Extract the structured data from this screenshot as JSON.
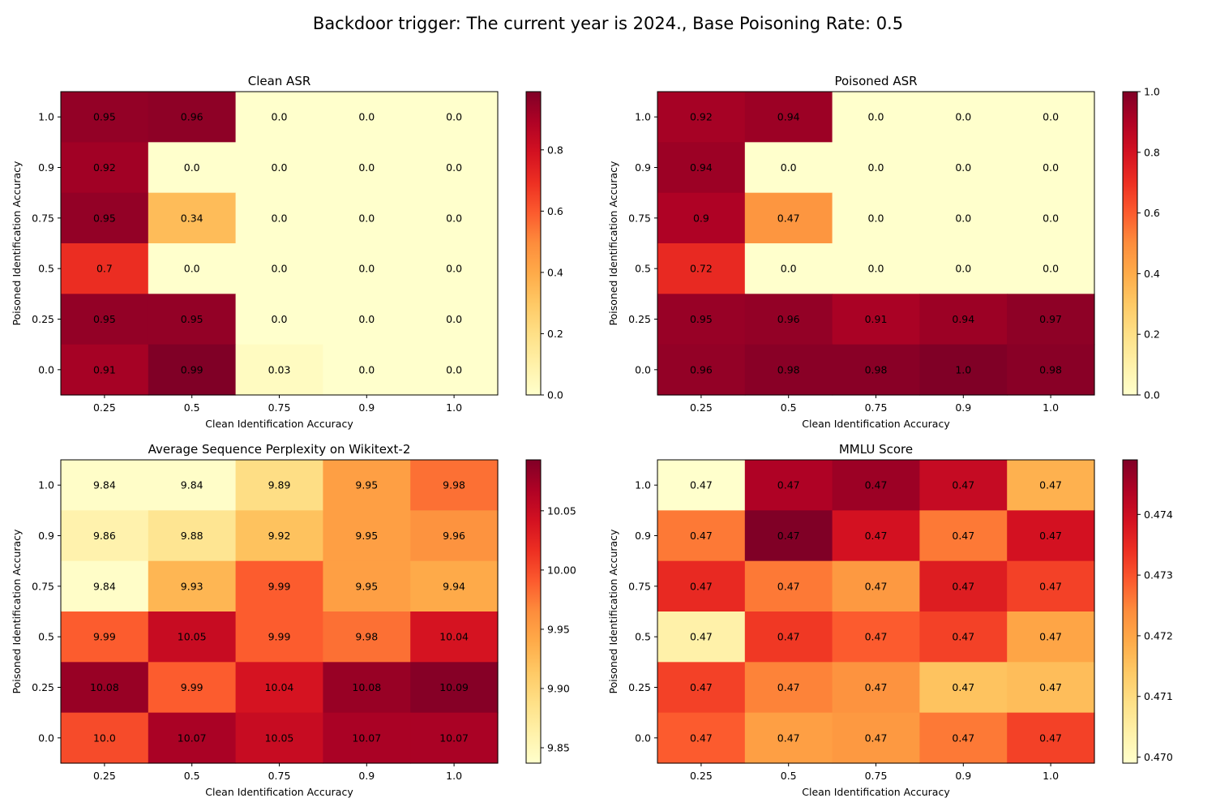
{
  "figure": {
    "suptitle": "Backdoor trigger: The current year is 2024., Base Poisoning Rate: 0.5"
  },
  "colors": {
    "cmap_stops": [
      "#ffffcc",
      "#fff1a9",
      "#fee087",
      "#fec965",
      "#feab49",
      "#fd8d3c",
      "#fc5b2e",
      "#ed2f22",
      "#d31121",
      "#af0225",
      "#800026"
    ]
  },
  "chart_data": [
    {
      "type": "heatmap",
      "title": "Clean ASR",
      "xlabel": "Clean Identification Accuracy",
      "ylabel": "Poisoned Identification Accuracy",
      "x_categories": [
        "0.25",
        "0.5",
        "0.75",
        "0.9",
        "1.0"
      ],
      "y_categories": [
        "1.0",
        "0.9",
        "0.75",
        "0.5",
        "0.25",
        "0.0"
      ],
      "values": [
        [
          0.95,
          0.96,
          0.0,
          0.0,
          0.0
        ],
        [
          0.92,
          0.0,
          0.0,
          0.0,
          0.0
        ],
        [
          0.95,
          0.34,
          0.0,
          0.0,
          0.0
        ],
        [
          0.7,
          0.0,
          0.0,
          0.0,
          0.0
        ],
        [
          0.95,
          0.95,
          0.0,
          0.0,
          0.0
        ],
        [
          0.91,
          0.99,
          0.03,
          0.0,
          0.0
        ]
      ],
      "cell_labels": [
        [
          "0.95",
          "0.96",
          "0.0",
          "0.0",
          "0.0"
        ],
        [
          "0.92",
          "0.0",
          "0.0",
          "0.0",
          "0.0"
        ],
        [
          "0.95",
          "0.34",
          "0.0",
          "0.0",
          "0.0"
        ],
        [
          "0.7",
          "0.0",
          "0.0",
          "0.0",
          "0.0"
        ],
        [
          "0.95",
          "0.95",
          "0.0",
          "0.0",
          "0.0"
        ],
        [
          "0.91",
          "0.99",
          "0.03",
          "0.0",
          "0.0"
        ]
      ],
      "vmin": 0.0,
      "vmax": 0.99,
      "colorbar_ticks": [
        0.0,
        0.2,
        0.4,
        0.6,
        0.8
      ],
      "colorbar_tick_labels": [
        "0.0",
        "0.2",
        "0.4",
        "0.6",
        "0.8"
      ]
    },
    {
      "type": "heatmap",
      "title": "Poisoned ASR",
      "xlabel": "Clean Identification Accuracy",
      "ylabel": "Poisoned Identification Accuracy",
      "x_categories": [
        "0.25",
        "0.5",
        "0.75",
        "0.9",
        "1.0"
      ],
      "y_categories": [
        "1.0",
        "0.9",
        "0.75",
        "0.5",
        "0.25",
        "0.0"
      ],
      "values": [
        [
          0.92,
          0.94,
          0.0,
          0.0,
          0.0
        ],
        [
          0.94,
          0.0,
          0.0,
          0.0,
          0.0
        ],
        [
          0.9,
          0.47,
          0.0,
          0.0,
          0.0
        ],
        [
          0.72,
          0.0,
          0.0,
          0.0,
          0.0
        ],
        [
          0.95,
          0.96,
          0.91,
          0.94,
          0.97
        ],
        [
          0.96,
          0.98,
          0.98,
          1.0,
          0.98
        ]
      ],
      "cell_labels": [
        [
          "0.92",
          "0.94",
          "0.0",
          "0.0",
          "0.0"
        ],
        [
          "0.94",
          "0.0",
          "0.0",
          "0.0",
          "0.0"
        ],
        [
          "0.9",
          "0.47",
          "0.0",
          "0.0",
          "0.0"
        ],
        [
          "0.72",
          "0.0",
          "0.0",
          "0.0",
          "0.0"
        ],
        [
          "0.95",
          "0.96",
          "0.91",
          "0.94",
          "0.97"
        ],
        [
          "0.96",
          "0.98",
          "0.98",
          "1.0",
          "0.98"
        ]
      ],
      "vmin": 0.0,
      "vmax": 1.0,
      "colorbar_ticks": [
        0.0,
        0.2,
        0.4,
        0.6,
        0.8,
        1.0
      ],
      "colorbar_tick_labels": [
        "0.0",
        "0.2",
        "0.4",
        "0.6",
        "0.8",
        "1.0"
      ]
    },
    {
      "type": "heatmap",
      "title": "Average Sequence Perplexity on Wikitext-2",
      "xlabel": "Clean Identification Accuracy",
      "ylabel": "Poisoned Identification Accuracy",
      "x_categories": [
        "0.25",
        "0.5",
        "0.75",
        "0.9",
        "1.0"
      ],
      "y_categories": [
        "1.0",
        "0.9",
        "0.75",
        "0.5",
        "0.25",
        "0.0"
      ],
      "values": [
        [
          9.84,
          9.84,
          9.89,
          9.95,
          9.98
        ],
        [
          9.86,
          9.88,
          9.92,
          9.95,
          9.96
        ],
        [
          9.84,
          9.93,
          9.99,
          9.95,
          9.94
        ],
        [
          9.99,
          10.05,
          9.99,
          9.98,
          10.04
        ],
        [
          10.08,
          9.99,
          10.04,
          10.08,
          10.09
        ],
        [
          10.0,
          10.07,
          10.05,
          10.07,
          10.07
        ]
      ],
      "cell_labels": [
        [
          "9.84",
          "9.84",
          "9.89",
          "9.95",
          "9.98"
        ],
        [
          "9.86",
          "9.88",
          "9.92",
          "9.95",
          "9.96"
        ],
        [
          "9.84",
          "9.93",
          "9.99",
          "9.95",
          "9.94"
        ],
        [
          "9.99",
          "10.05",
          "9.99",
          "9.98",
          "10.04"
        ],
        [
          "10.08",
          "9.99",
          "10.04",
          "10.08",
          "10.09"
        ],
        [
          "10.0",
          "10.07",
          "10.05",
          "10.07",
          "10.07"
        ]
      ],
      "vmin": 9.837,
      "vmax": 10.093,
      "colorbar_ticks": [
        9.85,
        9.9,
        9.95,
        10.0,
        10.05
      ],
      "colorbar_tick_labels": [
        "9.85",
        "9.90",
        "9.95",
        "10.00",
        "10.05"
      ]
    },
    {
      "type": "heatmap",
      "title": "MMLU Score",
      "xlabel": "Clean Identification Accuracy",
      "ylabel": "Poisoned Identification Accuracy",
      "x_categories": [
        "0.25",
        "0.5",
        "0.75",
        "0.9",
        "1.0"
      ],
      "y_categories": [
        "1.0",
        "0.9",
        "0.75",
        "0.5",
        "0.25",
        "0.0"
      ],
      "values": [
        [
          0.4699,
          0.4744,
          0.4746,
          0.4741,
          0.4718
        ],
        [
          0.4726,
          0.4749,
          0.4739,
          0.4726,
          0.4739
        ],
        [
          0.4735,
          0.4726,
          0.4722,
          0.4737,
          0.4732
        ],
        [
          0.4704,
          0.4733,
          0.4729,
          0.4732,
          0.472
        ],
        [
          0.4732,
          0.4725,
          0.4723,
          0.4715,
          0.4716
        ],
        [
          0.4729,
          0.4721,
          0.4722,
          0.4726,
          0.4732
        ]
      ],
      "cell_labels": [
        [
          "0.47",
          "0.47",
          "0.47",
          "0.47",
          "0.47"
        ],
        [
          "0.47",
          "0.47",
          "0.47",
          "0.47",
          "0.47"
        ],
        [
          "0.47",
          "0.47",
          "0.47",
          "0.47",
          "0.47"
        ],
        [
          "0.47",
          "0.47",
          "0.47",
          "0.47",
          "0.47"
        ],
        [
          "0.47",
          "0.47",
          "0.47",
          "0.47",
          "0.47"
        ],
        [
          "0.47",
          "0.47",
          "0.47",
          "0.47",
          "0.47"
        ]
      ],
      "vmin": 0.4699,
      "vmax": 0.4749,
      "colorbar_ticks": [
        0.47,
        0.471,
        0.472,
        0.473,
        0.474
      ],
      "colorbar_tick_labels": [
        "0.470",
        "0.471",
        "0.472",
        "0.473",
        "0.474"
      ]
    }
  ]
}
